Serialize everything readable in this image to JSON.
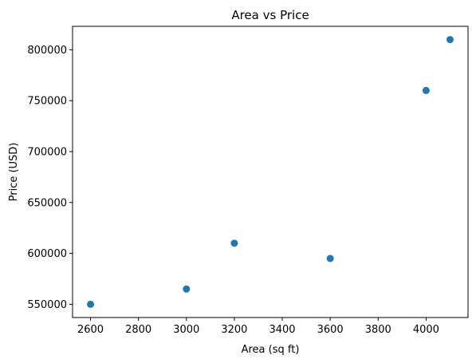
{
  "chart_data": {
    "type": "scatter",
    "title": "Area vs Price",
    "xlabel": "Area (sq ft)",
    "ylabel": "Price (USD)",
    "xlim": [
      2525,
      4175
    ],
    "ylim": [
      537000,
      823000
    ],
    "x_ticks": [
      2600,
      2800,
      3000,
      3200,
      3400,
      3600,
      3800,
      4000
    ],
    "y_ticks": [
      550000,
      600000,
      650000,
      700000,
      750000,
      800000
    ],
    "grid": false,
    "legend": "none",
    "marker_color": "#1f77b4",
    "series": [
      {
        "points": [
          {
            "x": 2600,
            "y": 550000
          },
          {
            "x": 3000,
            "y": 565000
          },
          {
            "x": 3200,
            "y": 610000
          },
          {
            "x": 3600,
            "y": 595000
          },
          {
            "x": 4000,
            "y": 760000
          },
          {
            "x": 4100,
            "y": 810000
          }
        ]
      }
    ]
  }
}
